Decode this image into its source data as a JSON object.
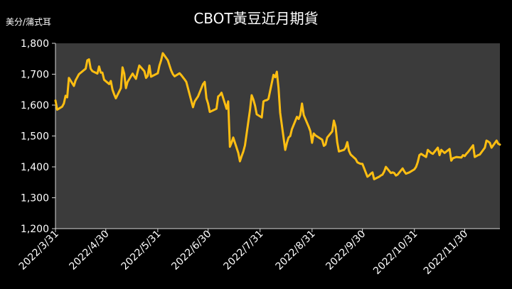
{
  "chart_data": {
    "type": "line",
    "title": "CBOT黃豆近月期貨",
    "ylabel": "美分/蒲式耳",
    "xlabel": "",
    "ylim": [
      1200,
      1800
    ],
    "yticks": [
      1200,
      1300,
      1400,
      1500,
      1600,
      1700,
      1800
    ],
    "ytick_labels": [
      "1,200",
      "1,300",
      "1,400",
      "1,500",
      "1,600",
      "1,700",
      "1,800"
    ],
    "xticks": [
      "2022/3/31",
      "2022/4/30",
      "2022/5/31",
      "2022/6/30",
      "2022/7/31",
      "2022/8/31",
      "2022/9/30",
      "2022/10/31",
      "2022/11/30"
    ],
    "grid": false,
    "legend": "none",
    "colors": {
      "line": "#FDBE12",
      "plot_bg": "#3B3B3B",
      "page_bg": "#000000"
    },
    "series": [
      {
        "values": [
          [
            "2022-03-31",
            1615
          ],
          [
            "2022-04-01",
            1585
          ],
          [
            "2022-04-04",
            1595
          ],
          [
            "2022-04-05",
            1605
          ],
          [
            "2022-04-06",
            1630
          ],
          [
            "2022-04-07",
            1625
          ],
          [
            "2022-04-08",
            1688
          ],
          [
            "2022-04-11",
            1662
          ],
          [
            "2022-04-12",
            1680
          ],
          [
            "2022-04-13",
            1690
          ],
          [
            "2022-04-14",
            1700
          ],
          [
            "2022-04-18",
            1718
          ],
          [
            "2022-04-19",
            1745
          ],
          [
            "2022-04-20",
            1748
          ],
          [
            "2022-04-21",
            1718
          ],
          [
            "2022-04-22",
            1710
          ],
          [
            "2022-04-25",
            1702
          ],
          [
            "2022-04-26",
            1725
          ],
          [
            "2022-04-27",
            1705
          ],
          [
            "2022-04-28",
            1705
          ],
          [
            "2022-04-29",
            1682
          ],
          [
            "2022-05-02",
            1668
          ],
          [
            "2022-05-03",
            1678
          ],
          [
            "2022-05-04",
            1650
          ],
          [
            "2022-05-05",
            1635
          ],
          [
            "2022-05-06",
            1622
          ],
          [
            "2022-05-09",
            1655
          ],
          [
            "2022-05-10",
            1722
          ],
          [
            "2022-05-11",
            1702
          ],
          [
            "2022-05-12",
            1655
          ],
          [
            "2022-05-13",
            1675
          ],
          [
            "2022-05-16",
            1702
          ],
          [
            "2022-05-17",
            1693
          ],
          [
            "2022-05-18",
            1685
          ],
          [
            "2022-05-19",
            1708
          ],
          [
            "2022-05-20",
            1728
          ],
          [
            "2022-05-23",
            1710
          ],
          [
            "2022-05-24",
            1688
          ],
          [
            "2022-05-25",
            1695
          ],
          [
            "2022-05-26",
            1728
          ],
          [
            "2022-05-27",
            1692
          ],
          [
            "2022-05-31",
            1703
          ],
          [
            "2022-06-01",
            1728
          ],
          [
            "2022-06-02",
            1745
          ],
          [
            "2022-06-03",
            1768
          ],
          [
            "2022-06-06",
            1745
          ],
          [
            "2022-06-07",
            1728
          ],
          [
            "2022-06-08",
            1712
          ],
          [
            "2022-06-09",
            1700
          ],
          [
            "2022-06-10",
            1693
          ],
          [
            "2022-06-13",
            1703
          ],
          [
            "2022-06-14",
            1697
          ],
          [
            "2022-06-15",
            1690
          ],
          [
            "2022-06-16",
            1683
          ],
          [
            "2022-06-17",
            1675
          ],
          [
            "2022-06-21",
            1593
          ],
          [
            "2022-06-22",
            1612
          ],
          [
            "2022-06-23",
            1620
          ],
          [
            "2022-06-24",
            1628
          ],
          [
            "2022-06-27",
            1668
          ],
          [
            "2022-06-28",
            1675
          ],
          [
            "2022-06-29",
            1622
          ],
          [
            "2022-06-30",
            1605
          ],
          [
            "2022-07-01",
            1578
          ],
          [
            "2022-07-05",
            1588
          ],
          [
            "2022-07-06",
            1628
          ],
          [
            "2022-07-07",
            1632
          ],
          [
            "2022-07-08",
            1640
          ],
          [
            "2022-07-11",
            1588
          ],
          [
            "2022-07-12",
            1612
          ],
          [
            "2022-07-13",
            1465
          ],
          [
            "2022-07-14",
            1478
          ],
          [
            "2022-07-15",
            1495
          ],
          [
            "2022-07-18",
            1445
          ],
          [
            "2022-07-19",
            1418
          ],
          [
            "2022-07-20",
            1435
          ],
          [
            "2022-07-21",
            1450
          ],
          [
            "2022-07-22",
            1470
          ],
          [
            "2022-07-25",
            1585
          ],
          [
            "2022-07-26",
            1632
          ],
          [
            "2022-07-27",
            1618
          ],
          [
            "2022-07-28",
            1598
          ],
          [
            "2022-07-29",
            1570
          ],
          [
            "2022-08-01",
            1560
          ],
          [
            "2022-08-02",
            1612
          ],
          [
            "2022-08-03",
            1615
          ],
          [
            "2022-08-04",
            1616
          ],
          [
            "2022-08-05",
            1620
          ],
          [
            "2022-08-08",
            1698
          ],
          [
            "2022-08-09",
            1690
          ],
          [
            "2022-08-10",
            1708
          ],
          [
            "2022-08-11",
            1655
          ],
          [
            "2022-08-12",
            1575
          ],
          [
            "2022-08-15",
            1455
          ],
          [
            "2022-08-16",
            1478
          ],
          [
            "2022-08-17",
            1495
          ],
          [
            "2022-08-18",
            1500
          ],
          [
            "2022-08-19",
            1522
          ],
          [
            "2022-08-22",
            1562
          ],
          [
            "2022-08-23",
            1555
          ],
          [
            "2022-08-24",
            1568
          ],
          [
            "2022-08-25",
            1605
          ],
          [
            "2022-08-26",
            1568
          ],
          [
            "2022-08-29",
            1530
          ],
          [
            "2022-08-30",
            1515
          ],
          [
            "2022-08-31",
            1478
          ],
          [
            "2022-09-01",
            1508
          ],
          [
            "2022-09-02",
            1502
          ],
          [
            "2022-09-06",
            1488
          ],
          [
            "2022-09-07",
            1468
          ],
          [
            "2022-09-08",
            1472
          ],
          [
            "2022-09-09",
            1495
          ],
          [
            "2022-09-12",
            1515
          ],
          [
            "2022-09-13",
            1550
          ],
          [
            "2022-09-14",
            1530
          ],
          [
            "2022-09-15",
            1480
          ],
          [
            "2022-09-16",
            1450
          ],
          [
            "2022-09-19",
            1455
          ],
          [
            "2022-09-20",
            1462
          ],
          [
            "2022-09-21",
            1480
          ],
          [
            "2022-09-22",
            1452
          ],
          [
            "2022-09-23",
            1440
          ],
          [
            "2022-09-26",
            1425
          ],
          [
            "2022-09-27",
            1415
          ],
          [
            "2022-09-28",
            1412
          ],
          [
            "2022-09-29",
            1410
          ],
          [
            "2022-09-30",
            1410
          ],
          [
            "2022-10-03",
            1368
          ],
          [
            "2022-10-04",
            1372
          ],
          [
            "2022-10-05",
            1378
          ],
          [
            "2022-10-06",
            1382
          ],
          [
            "2022-10-07",
            1360
          ],
          [
            "2022-10-10",
            1368
          ],
          [
            "2022-10-11",
            1372
          ],
          [
            "2022-10-12",
            1375
          ],
          [
            "2022-10-13",
            1385
          ],
          [
            "2022-10-14",
            1400
          ],
          [
            "2022-10-17",
            1380
          ],
          [
            "2022-10-18",
            1382
          ],
          [
            "2022-10-19",
            1380
          ],
          [
            "2022-10-20",
            1372
          ],
          [
            "2022-10-21",
            1375
          ],
          [
            "2022-10-24",
            1395
          ],
          [
            "2022-10-25",
            1385
          ],
          [
            "2022-10-26",
            1378
          ],
          [
            "2022-10-27",
            1380
          ],
          [
            "2022-10-28",
            1382
          ],
          [
            "2022-10-31",
            1392
          ],
          [
            "2022-11-01",
            1400
          ],
          [
            "2022-11-02",
            1415
          ],
          [
            "2022-11-03",
            1438
          ],
          [
            "2022-11-04",
            1442
          ],
          [
            "2022-11-07",
            1432
          ],
          [
            "2022-11-08",
            1455
          ],
          [
            "2022-11-09",
            1450
          ],
          [
            "2022-11-10",
            1445
          ],
          [
            "2022-11-11",
            1442
          ],
          [
            "2022-11-14",
            1462
          ],
          [
            "2022-11-15",
            1438
          ],
          [
            "2022-11-16",
            1455
          ],
          [
            "2022-11-17",
            1450
          ],
          [
            "2022-11-18",
            1445
          ],
          [
            "2022-11-21",
            1458
          ],
          [
            "2022-11-22",
            1420
          ],
          [
            "2022-11-23",
            1428
          ],
          [
            "2022-11-25",
            1432
          ],
          [
            "2022-11-28",
            1430
          ],
          [
            "2022-11-29",
            1438
          ],
          [
            "2022-11-30",
            1435
          ],
          [
            "2022-12-01",
            1442
          ],
          [
            "2022-12-02",
            1448
          ],
          [
            "2022-12-05",
            1470
          ],
          [
            "2022-12-06",
            1432
          ],
          [
            "2022-12-07",
            1435
          ],
          [
            "2022-12-08",
            1438
          ],
          [
            "2022-12-09",
            1440
          ],
          [
            "2022-12-12",
            1462
          ],
          [
            "2022-12-13",
            1485
          ],
          [
            "2022-12-14",
            1482
          ],
          [
            "2022-12-15",
            1478
          ],
          [
            "2022-12-16",
            1462
          ],
          [
            "2022-12-19",
            1485
          ],
          [
            "2022-12-20",
            1475
          ],
          [
            "2022-12-21",
            1472
          ]
        ]
      }
    ]
  }
}
